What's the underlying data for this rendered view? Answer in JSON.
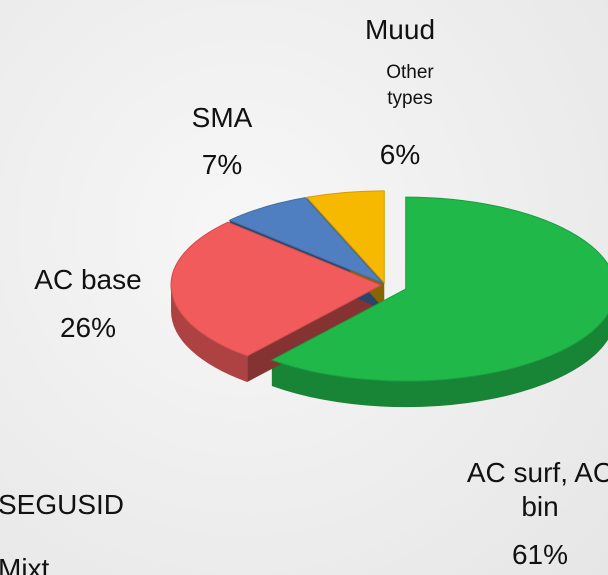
{
  "chart_data": {
    "type": "pie3d",
    "title": "SEGUSID",
    "subtitle": "Mixt",
    "categories": [
      "AC surf, AC bin",
      "AC base",
      "SMA",
      "Muud"
    ],
    "annotation": "Other types",
    "values": [
      61,
      26,
      7,
      6
    ],
    "value_labels": [
      "61%",
      "26%",
      "7%",
      "6%"
    ],
    "colors": [
      "#21b84a",
      "#f25b5b",
      "#4f7fc0",
      "#f6b900"
    ],
    "explode": [
      true,
      false,
      false,
      false
    ]
  }
}
